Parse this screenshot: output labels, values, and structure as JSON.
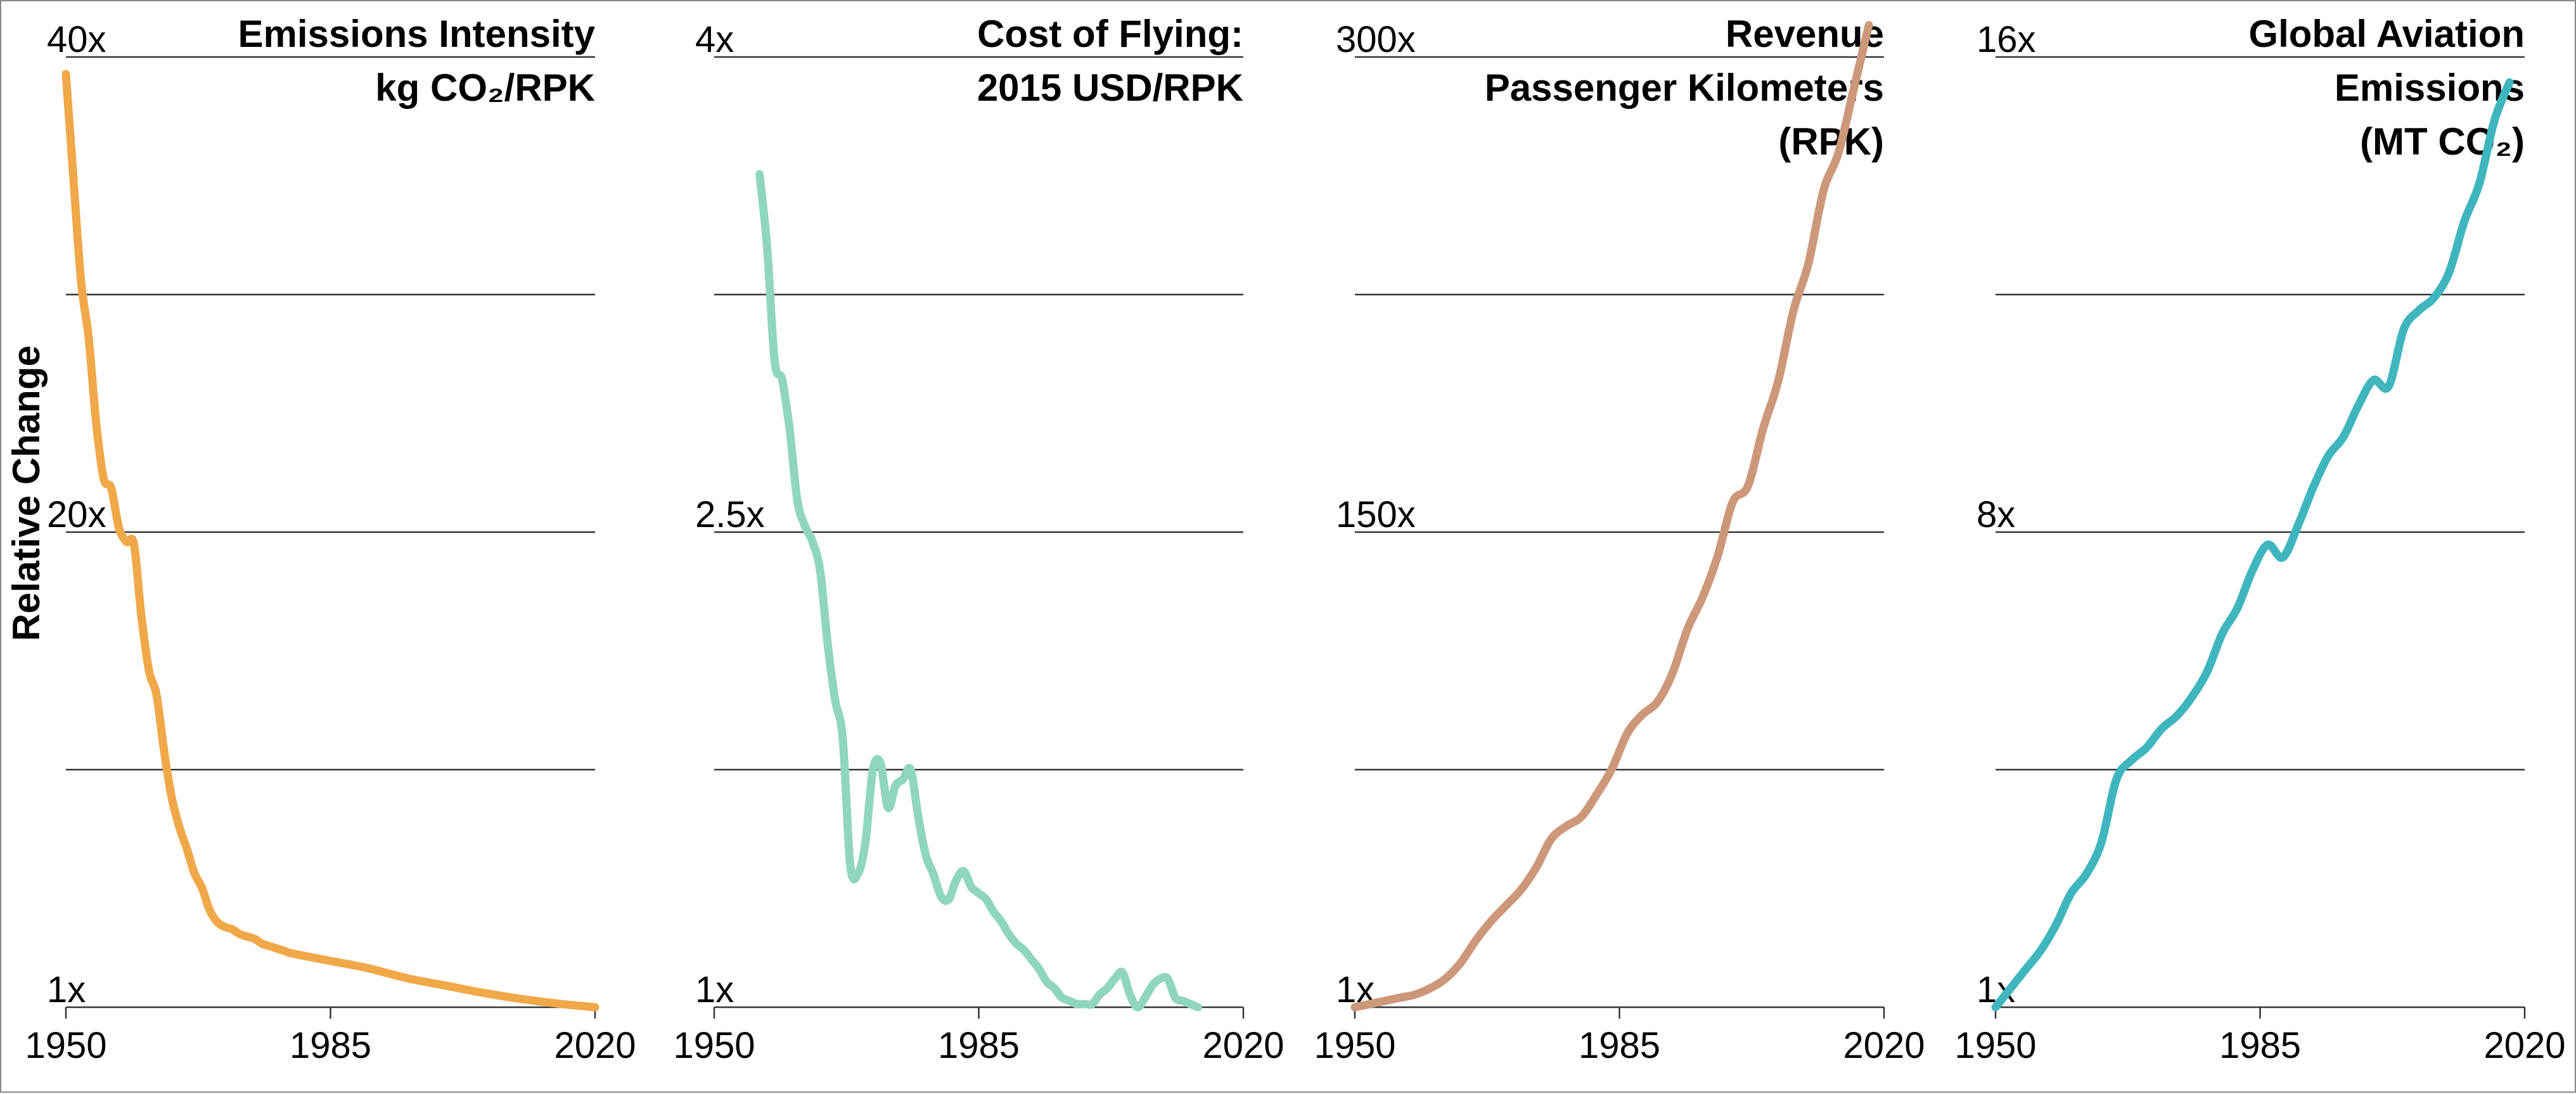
{
  "y_axis_title": "Relative Change",
  "chart_data": [
    {
      "type": "line",
      "title_lines": [
        "Emissions Intensity",
        "kg CO₂/RPK"
      ],
      "color": "#f0a848",
      "x_ticks": [
        "1950",
        "1985",
        "2020"
      ],
      "xlim": [
        1950,
        2020
      ],
      "ylim": [
        1,
        40
      ],
      "y_tick_labels": [
        {
          "value": 1,
          "label": "1x"
        },
        {
          "value": 20.5,
          "label": "20x"
        },
        {
          "value": 40,
          "label": "40x"
        }
      ],
      "gridlines": [
        10.75,
        20.5,
        30.25
      ],
      "x": [
        1950,
        1951,
        1952,
        1953,
        1954,
        1955,
        1956,
        1957,
        1958,
        1959,
        1960,
        1961,
        1962,
        1963,
        1964,
        1965,
        1966,
        1967,
        1968,
        1969,
        1970,
        1971,
        1972,
        1973,
        1974,
        1975,
        1976,
        1977,
        1978,
        1979,
        1980,
        1985,
        1990,
        1995,
        2000,
        2005,
        2010,
        2015,
        2020
      ],
      "y": [
        39.3,
        35,
        30.8,
        28.5,
        25,
        22.7,
        22.3,
        20.7,
        20.1,
        20.0,
        17.0,
        14.8,
        13.8,
        11.5,
        9.6,
        8.4,
        7.5,
        6.5,
        5.9,
        5.0,
        4.5,
        4.3,
        4.2,
        4.0,
        3.9,
        3.8,
        3.6,
        3.5,
        3.4,
        3.3,
        3.2,
        2.9,
        2.6,
        2.2,
        1.9,
        1.6,
        1.35,
        1.15,
        1.0
      ]
    },
    {
      "type": "line",
      "title_lines": [
        "Cost of Flying:",
        "2015 USD/RPK"
      ],
      "color": "#8fd5bf",
      "x_ticks": [
        "1950",
        "1985",
        "2020"
      ],
      "xlim": [
        1950,
        2020
      ],
      "ylim": [
        1,
        4
      ],
      "y_tick_labels": [
        {
          "value": 1,
          "label": "1x"
        },
        {
          "value": 2.5,
          "label": "2.5x"
        },
        {
          "value": 4,
          "label": "4x"
        }
      ],
      "gridlines": [
        1.75,
        2.5,
        3.25
      ],
      "x": [
        1956,
        1957,
        1958,
        1959,
        1960,
        1961,
        1962,
        1963,
        1964,
        1965,
        1966,
        1967,
        1968,
        1969,
        1970,
        1971,
        1972,
        1973,
        1974,
        1975,
        1976,
        1977,
        1978,
        1979,
        1980,
        1981,
        1982,
        1983,
        1984,
        1985,
        1986,
        1987,
        1988,
        1989,
        1990,
        1991,
        1992,
        1993,
        1994,
        1995,
        1996,
        1997,
        1998,
        1999,
        2000,
        2001,
        2002,
        2003,
        2004,
        2005,
        2006,
        2007,
        2008,
        2009,
        2010,
        2011,
        2012,
        2013,
        2014
      ],
      "y": [
        3.63,
        3.4,
        3.04,
        2.98,
        2.82,
        2.6,
        2.52,
        2.47,
        2.38,
        2.15,
        1.97,
        1.85,
        1.45,
        1.42,
        1.52,
        1.75,
        1.77,
        1.63,
        1.7,
        1.72,
        1.75,
        1.6,
        1.48,
        1.42,
        1.35,
        1.34,
        1.4,
        1.43,
        1.38,
        1.36,
        1.34,
        1.3,
        1.27,
        1.23,
        1.2,
        1.18,
        1.15,
        1.12,
        1.08,
        1.06,
        1.03,
        1.02,
        1.01,
        1.01,
        1.01,
        1.04,
        1.06,
        1.09,
        1.11,
        1.04,
        1.0,
        1.03,
        1.07,
        1.09,
        1.09,
        1.03,
        1.02,
        1.01,
        1.0
      ]
    },
    {
      "type": "line",
      "title_lines": [
        "Revenue",
        "Passenger Kilometers",
        "(RPK)"
      ],
      "color": "#cd977a",
      "x_ticks": [
        "1950",
        "1985",
        "2020"
      ],
      "xlim": [
        1950,
        2020
      ],
      "ylim": [
        1,
        300
      ],
      "y_tick_labels": [
        {
          "value": 1,
          "label": "1x"
        },
        {
          "value": 150.5,
          "label": "150x"
        },
        {
          "value": 300,
          "label": "300x"
        }
      ],
      "gridlines": [
        75.75,
        150.5,
        225.25
      ],
      "x": [
        1950,
        1952,
        1954,
        1956,
        1958,
        1960,
        1962,
        1964,
        1966,
        1968,
        1970,
        1972,
        1974,
        1976,
        1978,
        1980,
        1982,
        1984,
        1986,
        1988,
        1990,
        1992,
        1994,
        1996,
        1998,
        2000,
        2002,
        2004,
        2006,
        2008,
        2010,
        2012,
        2014,
        2016,
        2018
      ],
      "y": [
        1,
        2,
        3,
        4,
        5,
        7,
        10,
        15,
        22,
        28,
        33,
        38,
        45,
        54,
        58,
        61,
        68,
        76,
        87,
        93,
        97,
        106,
        120,
        130,
        143,
        160,
        165,
        183,
        198,
        220,
        235,
        258,
        270,
        290,
        310
      ]
    },
    {
      "type": "line",
      "title_lines": [
        "Global Aviation",
        "Emissions",
        "(MT CO₂)"
      ],
      "color": "#3fb6be",
      "x_ticks": [
        "1950",
        "1985",
        "2020"
      ],
      "xlim": [
        1950,
        2020
      ],
      "ylim": [
        1,
        16
      ],
      "y_tick_labels": [
        {
          "value": 1,
          "label": "1x"
        },
        {
          "value": 8.5,
          "label": "8x"
        },
        {
          "value": 16,
          "label": "16x"
        }
      ],
      "gridlines": [
        4.75,
        8.5,
        12.25
      ],
      "x": [
        1950,
        1952,
        1954,
        1956,
        1958,
        1960,
        1962,
        1964,
        1966,
        1968,
        1970,
        1972,
        1974,
        1976,
        1978,
        1980,
        1982,
        1984,
        1986,
        1988,
        1990,
        1992,
        1994,
        1996,
        1998,
        2000,
        2002,
        2004,
        2006,
        2008,
        2010,
        2012,
        2014,
        2016,
        2018
      ],
      "y": [
        1.0,
        1.3,
        1.6,
        1.9,
        2.3,
        2.8,
        3.1,
        3.6,
        4.6,
        4.9,
        5.1,
        5.4,
        5.6,
        5.9,
        6.3,
        6.9,
        7.3,
        7.9,
        8.3,
        8.1,
        8.6,
        9.2,
        9.7,
        10.0,
        10.5,
        10.9,
        10.8,
        11.7,
        12.0,
        12.2,
        12.6,
        13.4,
        14.0,
        15.0,
        15.6
      ]
    }
  ]
}
